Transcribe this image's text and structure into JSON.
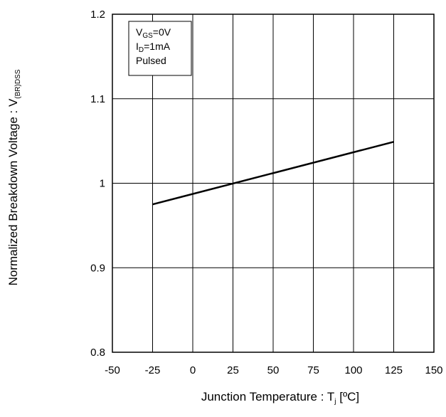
{
  "chart_data": {
    "type": "line",
    "x": [
      -25,
      125
    ],
    "series": [
      {
        "x": [
          -25,
          125
        ],
        "values": [
          0.975,
          1.049
        ],
        "color": "#000000"
      }
    ],
    "xlim": [
      -50,
      150
    ],
    "ylim": [
      0.8,
      1.2
    ],
    "xticks": [
      -50,
      -25,
      0,
      25,
      50,
      75,
      100,
      125,
      150
    ],
    "yticks": [
      0.8,
      0.9,
      1,
      1.1,
      1.2
    ],
    "xtick_labels": [
      "-50",
      "-25",
      "0",
      "25",
      "50",
      "75",
      "100",
      "125",
      "150"
    ],
    "ytick_labels": [
      "0.8",
      "0.9",
      "1",
      "1.1",
      "1.2"
    ],
    "xlabel": {
      "main": "Junction Temperature : T",
      "sub": "j",
      "tail": " [ºC]"
    },
    "ylabel": {
      "main": "Normalized Breakdown Voltage : V",
      "sub": "(BR)DSS"
    },
    "grid": true,
    "legend_box": {
      "position": "top-left",
      "lines": [
        {
          "main": "V",
          "sub": "GS",
          "tail": "=0V"
        },
        {
          "main": "I",
          "sub": "D",
          "tail": "=1mA"
        },
        {
          "main": "Pulsed",
          "sub": "",
          "tail": ""
        }
      ]
    }
  }
}
